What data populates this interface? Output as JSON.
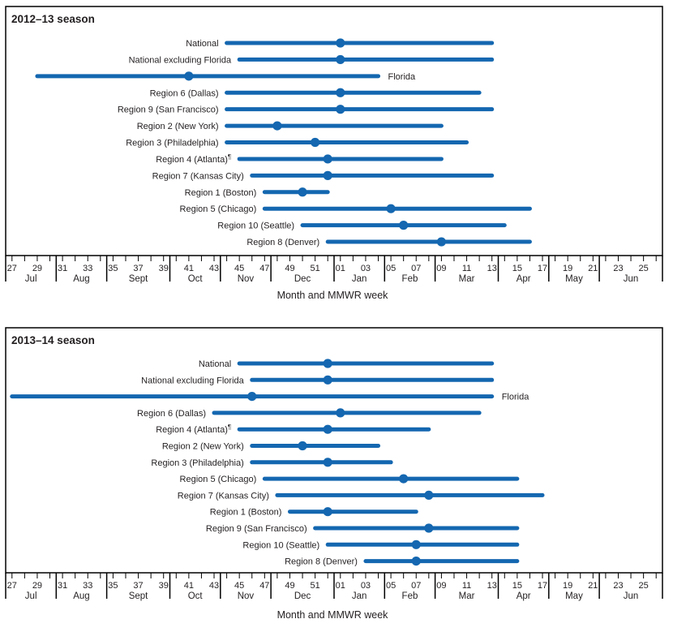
{
  "figure": {
    "caption": "Month and  MMWR week",
    "accent_color": "#1467b0",
    "text_color": "#231f20",
    "axis_color": "#000000"
  },
  "months": [
    {
      "label": "Jul",
      "weeks": [
        27,
        28,
        29,
        30
      ]
    },
    {
      "label": "Aug",
      "weeks": [
        31,
        32,
        33,
        34
      ]
    },
    {
      "label": "Sept",
      "weeks": [
        35,
        36,
        37,
        38,
        39
      ]
    },
    {
      "label": "Oct",
      "weeks": [
        40,
        41,
        42,
        43
      ]
    },
    {
      "label": "Nov",
      "weeks": [
        44,
        45,
        46,
        47
      ]
    },
    {
      "label": "Dec",
      "weeks": [
        48,
        49,
        50,
        51,
        52
      ]
    },
    {
      "label": "Jan",
      "weeks": [
        1,
        2,
        3,
        4
      ]
    },
    {
      "label": "Feb",
      "weeks": [
        5,
        6,
        7,
        8
      ]
    },
    {
      "label": "Mar",
      "weeks": [
        9,
        10,
        11,
        12,
        13
      ]
    },
    {
      "label": "Apr",
      "weeks": [
        14,
        15,
        16,
        17
      ]
    },
    {
      "label": "May",
      "weeks": [
        18,
        19,
        20,
        21
      ]
    },
    {
      "label": "Jun",
      "weeks": [
        22,
        23,
        24,
        25,
        26
      ]
    }
  ],
  "chart_data": [
    {
      "type": "range-dot-timeline",
      "title": "2012–13 season",
      "xlabel": "Month and  MMWR week",
      "x_axis": {
        "unit": "MMWR week",
        "start_week": 27,
        "end_week": 26,
        "tick_label_rule": "odd weeks labeled, zero-padded below 10",
        "grid": false
      },
      "marker_meaning": "line = weeks of influenza activity; dot = peak week",
      "series": [
        {
          "label": "National",
          "onset_week": 44,
          "peak_week": 1,
          "end_week": 13
        },
        {
          "label": "National excluding Florida",
          "onset_week": 45,
          "peak_week": 1,
          "end_week": 13
        },
        {
          "label": "Florida",
          "onset_week": 29,
          "peak_week": 41,
          "end_week": 4,
          "label_side": "right"
        },
        {
          "label": "Region 6 (Dallas)",
          "onset_week": 44,
          "peak_week": 1,
          "end_week": 12
        },
        {
          "label": "Region 9 (San Francisco)",
          "onset_week": 44,
          "peak_week": 1,
          "end_week": 13
        },
        {
          "label": "Region 2 (New York)",
          "onset_week": 44,
          "peak_week": 48,
          "end_week": 9
        },
        {
          "label": "Region 3 (Philadelphia)",
          "onset_week": 44,
          "peak_week": 51,
          "end_week": 11
        },
        {
          "label": "Region 4 (Atlanta)",
          "footnote_marker": "¶",
          "onset_week": 45,
          "peak_week": 52,
          "end_week": 9
        },
        {
          "label": "Region 7 (Kansas City)",
          "onset_week": 46,
          "peak_week": 52,
          "end_week": 13
        },
        {
          "label": "Region 1 (Boston)",
          "onset_week": 47,
          "peak_week": 50,
          "end_week": 52
        },
        {
          "label": "Region 5 (Chicago)",
          "onset_week": 47,
          "peak_week": 5,
          "end_week": 16
        },
        {
          "label": "Region 10 (Seattle)",
          "onset_week": 50,
          "peak_week": 6,
          "end_week": 14
        },
        {
          "label": "Region 8 (Denver)",
          "onset_week": 52,
          "peak_week": 9,
          "end_week": 16
        }
      ]
    },
    {
      "type": "range-dot-timeline",
      "title": "2013–14 season",
      "xlabel": "Month and  MMWR week",
      "x_axis": {
        "unit": "MMWR week",
        "start_week": 27,
        "end_week": 26,
        "tick_label_rule": "odd weeks labeled, zero-padded below 10",
        "grid": false
      },
      "marker_meaning": "line = weeks of influenza activity; dot = peak week",
      "series": [
        {
          "label": "National",
          "onset_week": 45,
          "peak_week": 52,
          "end_week": 13
        },
        {
          "label": "National excluding Florida",
          "onset_week": 46,
          "peak_week": 52,
          "end_week": 13
        },
        {
          "label": "Florida",
          "onset_week": 27,
          "peak_week": 46,
          "end_week": 13,
          "label_side": "right"
        },
        {
          "label": "Region 6 (Dallas)",
          "onset_week": 43,
          "peak_week": 1,
          "end_week": 12
        },
        {
          "label": "Region 4 (Atlanta)",
          "footnote_marker": "¶",
          "onset_week": 45,
          "peak_week": 52,
          "end_week": 8
        },
        {
          "label": "Region 2 (New York)",
          "onset_week": 46,
          "peak_week": 50,
          "end_week": 4
        },
        {
          "label": "Region 3 (Philadelphia)",
          "onset_week": 46,
          "peak_week": 52,
          "end_week": 5
        },
        {
          "label": "Region 5 (Chicago)",
          "onset_week": 47,
          "peak_week": 6,
          "end_week": 15
        },
        {
          "label": "Region 7 (Kansas City)",
          "onset_week": 48,
          "peak_week": 8,
          "end_week": 17
        },
        {
          "label": "Region 1 (Boston)",
          "onset_week": 49,
          "peak_week": 52,
          "end_week": 7
        },
        {
          "label": "Region 9 (San Francisco)",
          "onset_week": 51,
          "peak_week": 8,
          "end_week": 15
        },
        {
          "label": "Region 10 (Seattle)",
          "onset_week": 52,
          "peak_week": 7,
          "end_week": 15
        },
        {
          "label": "Region 8 (Denver)",
          "onset_week": 3,
          "peak_week": 7,
          "end_week": 15
        }
      ]
    }
  ]
}
